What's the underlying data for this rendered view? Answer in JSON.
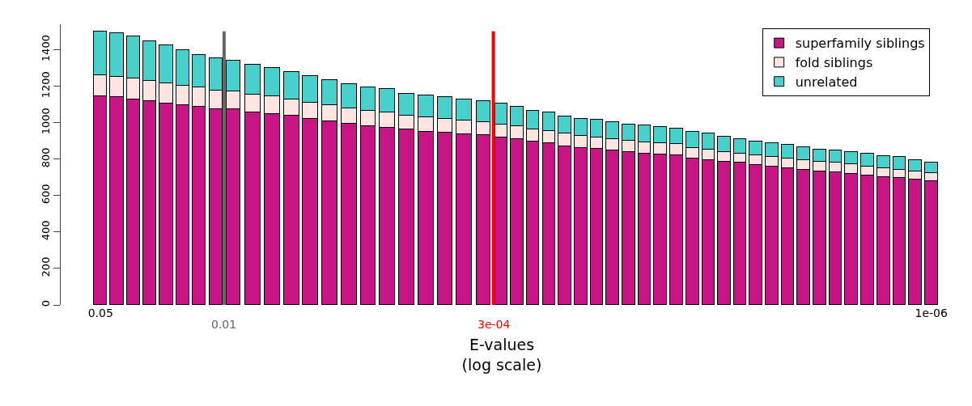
{
  "chart_data": {
    "type": "bar",
    "stacked": true,
    "xlabel": "E-values\n(log scale)",
    "log": "x",
    "x": [
      0.05,
      0.0404,
      0.0326,
      0.0263,
      0.0212,
      0.0171,
      0.0138,
      0.0111,
      0.00883,
      0.00687,
      0.00535,
      0.00416,
      0.00324,
      0.00252,
      0.00196,
      0.00153,
      0.00119,
      0.000925,
      0.00072,
      0.000562,
      0.000437,
      0.00034,
      0.00027,
      0.00022,
      0.000179,
      0.000145,
      0.000118,
      9.59e-05,
      7.8e-05,
      6.34e-05,
      5.15e-05,
      4.19e-05,
      3.4e-05,
      2.76e-05,
      2.24e-05,
      1.82e-05,
      1.48e-05,
      1.21e-05,
      9.8e-06,
      7.96e-06,
      6.47e-06,
      5.26e-06,
      4.28e-06,
      3.48e-06,
      2.82e-06,
      2.29e-06,
      1.86e-06,
      1.51e-06,
      1.23e-06,
      1e-06
    ],
    "series": [
      {
        "name": "superfamily siblings",
        "color": "#c71585",
        "values": [
          1144,
          1140,
          1129,
          1120,
          1107,
          1095,
          1086,
          1074,
          1073,
          1058,
          1046,
          1037,
          1021,
          1007,
          994,
          982,
          973,
          961,
          949,
          944,
          936,
          930,
          917,
          911,
          896,
          886,
          872,
          862,
          856,
          848,
          837,
          832,
          826,
          819,
          805,
          793,
          785,
          779,
          770,
          761,
          752,
          743,
          734,
          727,
          719,
          710,
          703,
          695,
          688,
          678
        ]
      },
      {
        "name": "fold siblings",
        "color": "#ffe4e1",
        "values": [
          115,
          113,
          113,
          109,
          108,
          107,
          106,
          101,
          98,
          95,
          98,
          92,
          90,
          88,
          85,
          85,
          82,
          76,
          79,
          78,
          74,
          74,
          73,
          68,
          67,
          66,
          67,
          65,
          64,
          63,
          62,
          61,
          61,
          62,
          58,
          60,
          56,
          53,
          52,
          52,
          53,
          52,
          51,
          52,
          52,
          49,
          47,
          48,
          46,
          47
        ]
      },
      {
        "name": "unrelated",
        "color": "#48d1cc",
        "values": [
          241,
          238,
          232,
          220,
          208,
          196,
          181,
          179,
          169,
          163,
          155,
          150,
          143,
          140,
          132,
          129,
          129,
          123,
          121,
          118,
          119,
          113,
          113,
          107,
          104,
          103,
          95,
          95,
          95,
          93,
          92,
          92,
          91,
          86,
          86,
          86,
          83,
          79,
          75,
          74,
          73,
          71,
          69,
          69,
          69,
          69,
          67,
          67,
          62,
          58
        ]
      }
    ],
    "xlim": [
      0.084,
      8.6e-07
    ],
    "xticks": [
      0.05,
      {
        "value": 1e-06,
        "label": "1e-06"
      }
    ],
    "ylim": [
      0,
      1540
    ],
    "yticks": [
      0,
      200,
      400,
      600,
      800,
      1000,
      1200,
      1400
    ],
    "ref_lines": [
      {
        "axis": "x",
        "value": 0.01,
        "label": "0.01",
        "color": "#666666"
      },
      {
        "axis": "x",
        "value": 0.0003,
        "label": "3e-04",
        "color": "#ff0000"
      }
    ],
    "legend": "top right"
  }
}
